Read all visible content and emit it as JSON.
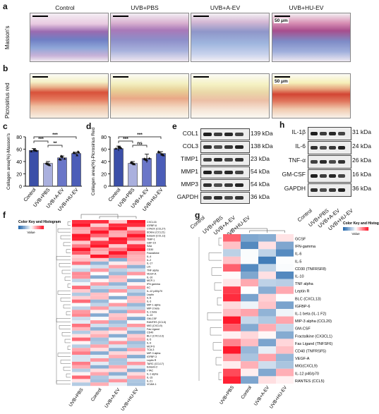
{
  "panels": {
    "a": "a",
    "b": "b",
    "c": "c",
    "d": "d",
    "e": "e",
    "f": "f",
    "g": "g",
    "h": "h"
  },
  "histology": {
    "columns": [
      "Control",
      "UVB+PBS",
      "UVB+A-EV",
      "UVB+HU-EV"
    ],
    "row_a_label": "Masson's",
    "row_b_label": "Picrosirius red",
    "scale_a": "50 μm",
    "scale_b": "50 μm"
  },
  "chart_data": [
    {
      "type": "bar",
      "panel": "c",
      "categories": [
        "Control",
        "UVB+PBS",
        "UVB+A-EV",
        "UVB+HU-EV"
      ],
      "values": [
        58,
        37,
        46,
        53
      ],
      "errors": [
        3,
        3,
        3,
        2
      ],
      "ylabel": "Collagen area(%)-Masson's",
      "ylim": [
        0,
        80
      ],
      "yticks": [
        "0",
        "20",
        "40",
        "60",
        "80"
      ],
      "significance": [
        "***",
        "**",
        "***"
      ],
      "colors": [
        "#3b4fa8",
        "#aab0de",
        "#6a76c8",
        "#4b5db8"
      ]
    },
    {
      "type": "bar",
      "panel": "d",
      "categories": [
        "Control",
        "UVB+PBS",
        "UVB+A-EV",
        "UVB+HU-EV"
      ],
      "values": [
        61,
        37,
        45,
        53
      ],
      "errors": [
        4,
        3,
        7,
        3
      ],
      "ylabel": "Collagen area(%)-Picrosirius Red",
      "ylim": [
        0,
        80
      ],
      "yticks": [
        "0",
        "20",
        "40",
        "60",
        "80"
      ],
      "significance": [
        "***",
        "ns",
        "***"
      ],
      "colors": [
        "#3b4fa8",
        "#aab0de",
        "#6a76c8",
        "#4b5db8"
      ]
    }
  ],
  "blot_e": {
    "rows": [
      {
        "name": "COL1",
        "kda": "139 kDa"
      },
      {
        "name": "COL3",
        "kda": "138 kDa"
      },
      {
        "name": "TIMP1",
        "kda": "23 kDa"
      },
      {
        "name": "MMP1",
        "kda": "54 kDa"
      },
      {
        "name": "MMP3",
        "kda": "54 kDa"
      },
      {
        "name": "GAPDH",
        "kda": "36 kDa"
      }
    ],
    "lanes": [
      "Control",
      "UVB+PBS",
      "UVB+A-EV",
      "UVB+HU-EV"
    ]
  },
  "blot_h": {
    "rows": [
      {
        "name": "IL-1β",
        "kda": "31 kDa"
      },
      {
        "name": "IL-6",
        "kda": "24 kDa"
      },
      {
        "name": "TNF-α",
        "kda": "26 kDa"
      },
      {
        "name": "GM-CSF",
        "kda": "16 kDa"
      },
      {
        "name": "GAPDH",
        "kda": "36 kDa"
      }
    ],
    "lanes": [
      "Control",
      "UVB+PBS",
      "UVB+A-EV",
      "UVB+HU-EV"
    ]
  },
  "heatmap_f": {
    "legend_title": "Color Key and Histogram",
    "legend_x": "Value",
    "columns": [
      "UVB+PBS",
      "Control",
      "UVB+A-EV",
      "UVB+HU-EV"
    ],
    "rows": [
      "CXCL16",
      "IGFBP-6",
      "CTACK (CCL27)",
      "6Ckine (CCL21)",
      "Eotaxin (CCL11)",
      "TIMP-1",
      "GDF-15",
      "SAA",
      "CD30",
      "Fractalkine",
      "IL-4",
      "IL-2",
      "IL-17",
      "LIX",
      "TNF alpha",
      "VEGF-A",
      "IL-10",
      "MCP-1",
      "IFN gamma",
      "KC",
      "IL-12 p40/p70",
      "Leptin",
      "IL-6",
      "IL-3",
      "MIP-1 alpha",
      "MIP-3 beta",
      "IL-1 beta",
      "IL-13",
      "GM-CSF",
      "RANTES (CCL5)",
      "MIG (CXCL9)",
      "Fas Ligand",
      "CD40",
      "BLC (CXCL13)",
      "IL-5",
      "IL-9",
      "MCP-5",
      "TCA-3",
      "MIP-3 alpha",
      "IGFBP-3",
      "Leptin R",
      "TARC (CCL17)",
      "Eotaxin-2",
      "I-TAC",
      "IL-1 alpha",
      "IL-15",
      "IL-21",
      "VCAM-1"
    ]
  },
  "heatmap_g": {
    "legend_title": "Color Key and Histogram",
    "legend_x": "Value",
    "columns": [
      "UVB+PBS",
      "Control",
      "UVB+A-EV",
      "UVB+HU-EV"
    ],
    "rows": [
      "GCSF",
      "IFN-gamma",
      "IL-6",
      "IL-5",
      "CD30 (TNFRSF8)",
      "IL-10",
      "TNF alpha",
      "Leptin R",
      "BLC (CXCL13)",
      "IGFBP-6",
      "IL-1 beta (IL-1 F2)",
      "MIP-3 alpha (CCL20)",
      "GM-CSF",
      "Fractalkine (CX3CL1)",
      "Fas Ligand (TNFSF6)",
      "CD40 (TNFRSF5)",
      "VEGF-A",
      "MIG(CXCL9)",
      "IL-12 p40/p70",
      "RANTES (CCL5)"
    ]
  },
  "colors": {
    "bar_dark": "#3b4fa8",
    "bar_light": "#aab0de",
    "heat_red": "#b2182b",
    "heat_blue": "#2166ac"
  }
}
